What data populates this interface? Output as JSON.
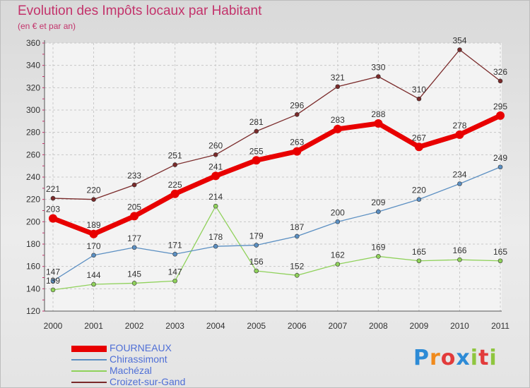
{
  "header": {
    "title": "Evolution des Impôts locaux par Habitant",
    "subtitle": "(en € et par an)"
  },
  "brand": {
    "text": "Proxiti",
    "colors": [
      "#2d8bd6",
      "#f08a1c",
      "#e23b3b",
      "#2d8bd6",
      "#8fc63f",
      "#e23b3b",
      "#8fc63f"
    ]
  },
  "chart_data": {
    "type": "line",
    "x": [
      "2000",
      "2001",
      "2002",
      "2003",
      "2004",
      "2005",
      "2006",
      "2007",
      "2008",
      "2009",
      "2010",
      "2011"
    ],
    "ylim": [
      120,
      360
    ],
    "yticks": [
      120,
      140,
      160,
      180,
      200,
      220,
      240,
      260,
      280,
      300,
      320,
      340,
      360
    ],
    "grid": true,
    "legend_position": "bottom-left",
    "series": [
      {
        "name": "FOURNEAUX",
        "color": "#e80000",
        "values": [
          203,
          189,
          205,
          225,
          241,
          255,
          263,
          283,
          288,
          267,
          278,
          295
        ]
      },
      {
        "name": "Chirassimont",
        "color": "#5b8fc2",
        "values": [
          147,
          170,
          177,
          171,
          178,
          179,
          187,
          200,
          209,
          220,
          234,
          249
        ]
      },
      {
        "name": "Machézal",
        "color": "#8fd15a",
        "values": [
          139,
          144,
          145,
          147,
          214,
          156,
          152,
          162,
          169,
          165,
          166,
          165
        ]
      },
      {
        "name": "Croizet-sur-Gand",
        "color": "#7a2a2a",
        "values": [
          221,
          220,
          233,
          251,
          260,
          281,
          296,
          321,
          330,
          310,
          354,
          326
        ]
      }
    ]
  }
}
